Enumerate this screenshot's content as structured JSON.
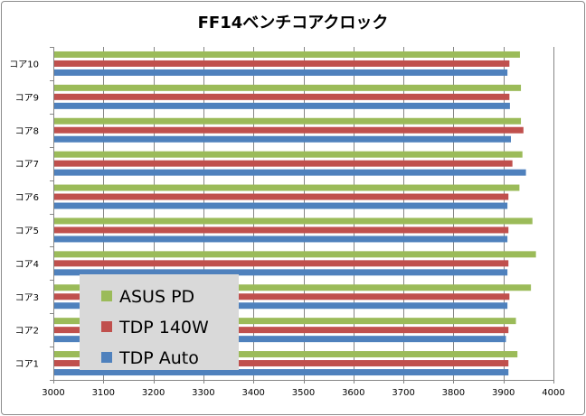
{
  "chart_data": {
    "type": "bar",
    "orientation": "horizontal",
    "title": "FF14ベンチコアクロック",
    "xlabel": "",
    "ylabel": "",
    "xlim": [
      3000,
      4000
    ],
    "xticks": [
      3000,
      3100,
      3200,
      3300,
      3400,
      3500,
      3600,
      3700,
      3800,
      3900,
      4000
    ],
    "grid": "vertical",
    "legend_position": "bottom-left",
    "categories": [
      "コア1",
      "コア2",
      "コア3",
      "コア4",
      "コア5",
      "コア6",
      "コア7",
      "コア8",
      "コア9",
      "コア10"
    ],
    "series": [
      {
        "name": "ASUS PD",
        "color": "#9bbb59",
        "values": [
          3928,
          3925,
          3955,
          3965,
          3958,
          3932,
          3938,
          3935,
          3935,
          3933
        ]
      },
      {
        "name": "TDP 140W",
        "color": "#c0504d",
        "values": [
          3910,
          3910,
          3912,
          3910,
          3910,
          3910,
          3918,
          3940,
          3912,
          3912
        ]
      },
      {
        "name": "TDP Auto",
        "color": "#4f81bd",
        "values": [
          3910,
          3905,
          3908,
          3908,
          3908,
          3908,
          3945,
          3915,
          3913,
          3908
        ]
      }
    ]
  }
}
